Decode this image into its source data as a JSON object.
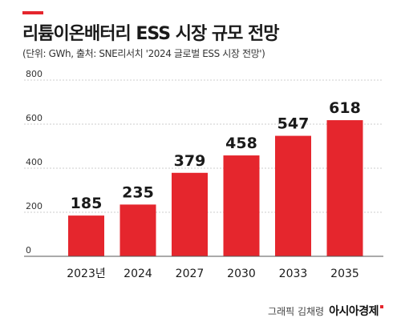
{
  "header": {
    "title": "리튬이온배터리 ESS 시장 규모 전망",
    "subtitle": "(단위: GWh, 출처: SNE리서치 '2024 글로벌 ESS 시장 전망')"
  },
  "footer": {
    "credit": "그래픽 김채령",
    "brand": "아시아경제"
  },
  "colors": {
    "bar": "#e5262d",
    "axis_text": "#333333",
    "grid": "#cccccc"
  },
  "chart_data": {
    "type": "bar",
    "categories": [
      "2023년",
      "2024",
      "2027",
      "2030",
      "2033",
      "2035"
    ],
    "values": [
      185,
      235,
      379,
      458,
      547,
      618
    ],
    "title": "리튬이온배터리 ESS 시장 규모 전망",
    "subtitle": "(단위: GWh, 출처: SNE리서치 '2024 글로벌 ESS 시장 전망')",
    "xlabel": "",
    "ylabel": "",
    "ylim": [
      0,
      800
    ],
    "yticks": [
      0,
      200,
      400,
      600,
      800
    ],
    "grid": true,
    "legend": "none"
  }
}
